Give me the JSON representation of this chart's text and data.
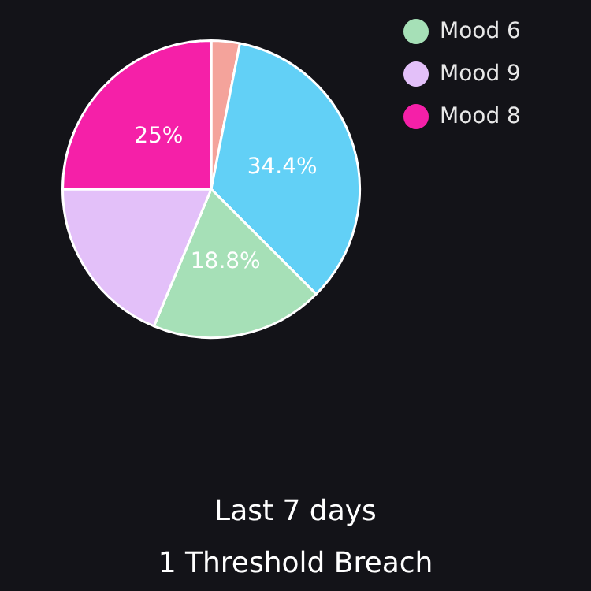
{
  "chart_data": {
    "type": "pie",
    "categories": [
      null,
      null,
      "Mood 6",
      "Mood 9",
      "Mood 8"
    ],
    "values": [
      3.1,
      34.4,
      18.8,
      18.7,
      25
    ],
    "colors": [
      "#f4a39b",
      "#62d0f6",
      "#a6e0b7",
      "#e3c0f9",
      "#f520a8"
    ],
    "value_labels": [
      null,
      "34.4%",
      "18.8%",
      null,
      "25%"
    ],
    "legend": "top right",
    "annotations": [
      "Last 7 days",
      "1 Threshold Breach"
    ]
  }
}
